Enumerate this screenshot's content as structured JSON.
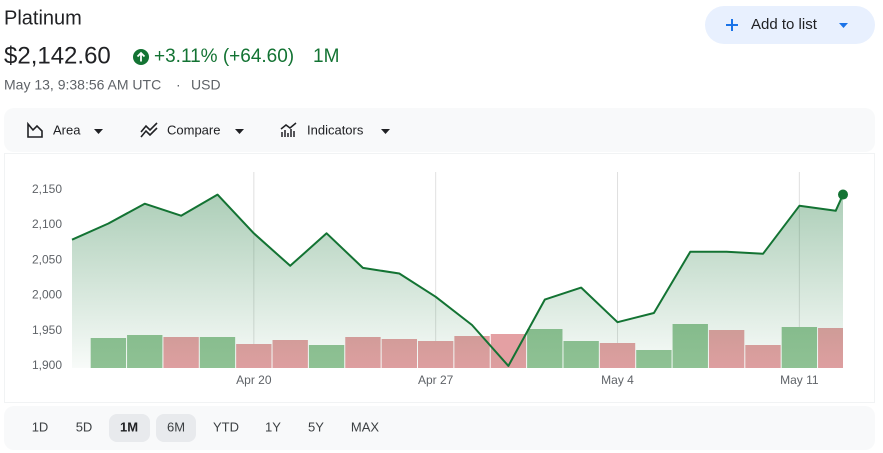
{
  "header": {
    "title": "Platinum",
    "price": "$2,142.60",
    "change": "+3.11% (+64.60)",
    "period": "1M",
    "timestamp": "May 13, 9:38:56 AM UTC",
    "separator": "·",
    "currency": "USD"
  },
  "add_button": "Add to list",
  "toolbar": [
    "Area",
    "Compare",
    "Indicators"
  ],
  "ranges": [
    "1D",
    "5D",
    "1M",
    "6M",
    "YTD",
    "1Y",
    "5Y",
    "MAX"
  ],
  "chart_data": {
    "type": "area",
    "x": [
      0,
      1,
      2,
      3,
      4,
      5,
      6,
      7,
      8,
      9,
      10,
      11,
      12,
      13,
      14,
      15,
      16,
      17,
      18,
      19,
      20,
      21,
      21.2
    ],
    "values": [
      2079,
      2102,
      2130,
      2113,
      2143,
      2088,
      2042,
      2088,
      2039,
      2031,
      1998,
      1958,
      1900,
      1994,
      2011,
      1962,
      1975,
      2062,
      2062,
      2059,
      2127,
      2120,
      2143
    ],
    "color": "#137333",
    "xlim": [
      0,
      21.2
    ],
    "xticks": [
      {
        "value": 5,
        "label": "Apr 20"
      },
      {
        "value": 10,
        "label": "Apr 27"
      },
      {
        "value": 15,
        "label": "May 4"
      },
      {
        "value": 20,
        "label": "May 11"
      }
    ],
    "ylim": [
      1897,
      2175
    ],
    "yticks": [
      {
        "value": 1900,
        "label": "1,900"
      },
      {
        "value": 1950,
        "label": "1,950"
      },
      {
        "value": 2000,
        "label": "2,000"
      },
      {
        "value": 2050,
        "label": "2,050"
      },
      {
        "value": 2100,
        "label": "2,100"
      },
      {
        "value": 2150,
        "label": "2,150"
      }
    ],
    "grid": true,
    "volume": {
      "x": [
        1,
        2,
        3,
        4,
        5,
        6,
        7,
        8,
        9,
        10,
        11,
        12,
        13,
        14,
        15,
        16,
        17,
        18,
        19,
        20,
        21
      ],
      "values": [
        30,
        33,
        31,
        31,
        24,
        28,
        23,
        31,
        29,
        27,
        32,
        34,
        39,
        27,
        25,
        18,
        44,
        38,
        23,
        41,
        40
      ],
      "colors": [
        "#93c497",
        "#93c497",
        "#e4a0a3",
        "#93c497",
        "#e4a0a3",
        "#e4a0a3",
        "#93c497",
        "#e4a0a3",
        "#e4a0a3",
        "#e4a0a3",
        "#e4a0a3",
        "#e4a0a3",
        "#93c497",
        "#93c497",
        "#e4a0a3",
        "#93c497",
        "#93c497",
        "#e4a0a3",
        "#e4a0a3",
        "#93c497",
        "#e4a0a3"
      ]
    }
  }
}
